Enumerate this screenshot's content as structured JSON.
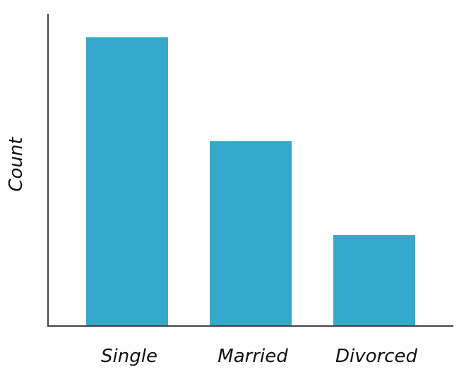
{
  "chart_data": {
    "type": "bar",
    "categories": [
      "Single",
      "Married",
      "Divorced"
    ],
    "values": [
      100,
      64,
      31.5
    ],
    "title": "",
    "xlabel": "",
    "ylabel": "Count",
    "ylim": [
      0,
      108
    ],
    "grid": false,
    "legend": "none",
    "colors": {
      "bar": "#34a9cc",
      "axis": "#444444",
      "text": "#111111"
    }
  }
}
